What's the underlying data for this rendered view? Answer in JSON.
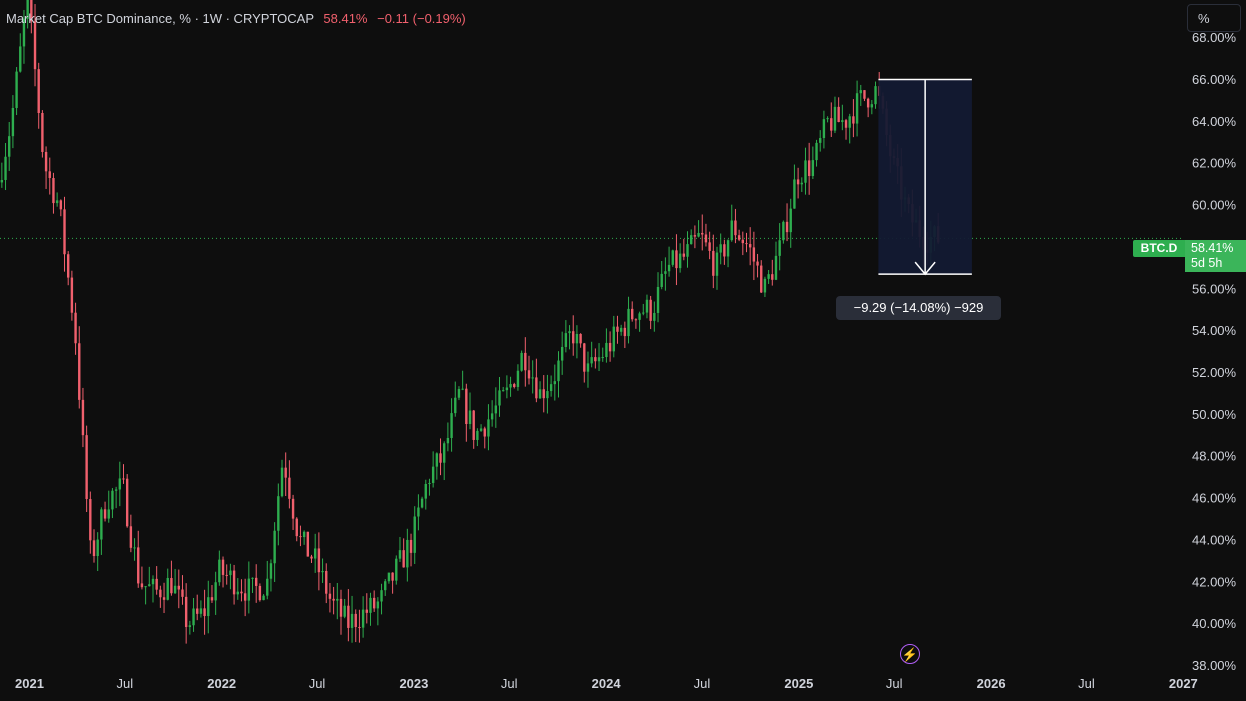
{
  "header": {
    "title": "Market Cap BTC Dominance, % · 1W · CRYPTOCAP",
    "price": "58.41%",
    "change": "−0.11 (−0.19%)"
  },
  "unit_button": "%",
  "symbol_tag": "BTC.D",
  "price_tag": {
    "price": "58.41%",
    "countdown": "5d 5h"
  },
  "measure_label": "−9.29 (−14.08%) −929",
  "icons": {
    "alert": "lightning-bolt-icon"
  },
  "colors": {
    "up": "#2eae4f",
    "down": "#f0606d",
    "background": "#0e0e0e",
    "measure_box": "#131a33"
  },
  "chart_data": {
    "type": "candlestick",
    "title": "Market Cap BTC Dominance, %",
    "interval": "1W",
    "y_ticks": [
      "38.00%",
      "40.00%",
      "42.00%",
      "44.00%",
      "46.00%",
      "48.00%",
      "50.00%",
      "52.00%",
      "54.00%",
      "56.00%",
      "58.00%",
      "60.00%",
      "62.00%",
      "64.00%",
      "66.00%",
      "68.00%"
    ],
    "ylim": [
      37.5,
      69.8
    ],
    "x_ticks": [
      "2021",
      "Jul",
      "2022",
      "Jul",
      "2023",
      "Jul",
      "2024",
      "Jul",
      "2025",
      "Jul",
      "2026",
      "Jul",
      "2027"
    ],
    "x_tick_dates": [
      "2021-01",
      "2021-07",
      "2022-01",
      "2022-07",
      "2023-01",
      "2023-07",
      "2024-01",
      "2024-07",
      "2025-01",
      "2025-07",
      "2026-01",
      "2026-07",
      "2027-01"
    ],
    "xlim": [
      "2020-11-06",
      "2027-04-30"
    ],
    "last_value": 58.41,
    "close_series": {
      "dates": [
        "2020-11",
        "2020-12",
        "2021-01",
        "2021-02",
        "2021-03",
        "2021-04",
        "2021-05",
        "2021-06",
        "2021-07",
        "2021-08",
        "2021-09",
        "2021-10",
        "2021-11",
        "2021-12",
        "2022-01",
        "2022-02",
        "2022-03",
        "2022-04",
        "2022-05",
        "2022-06",
        "2022-07",
        "2022-08",
        "2022-09",
        "2022-10",
        "2022-11",
        "2022-12",
        "2023-01",
        "2023-02",
        "2023-03",
        "2023-04",
        "2023-05",
        "2023-06",
        "2023-07",
        "2023-08",
        "2023-09",
        "2023-10",
        "2023-11",
        "2023-12",
        "2024-01",
        "2024-02",
        "2024-03",
        "2024-04",
        "2024-05",
        "2024-06",
        "2024-07",
        "2024-08",
        "2024-09",
        "2024-10",
        "2024-11",
        "2024-12",
        "2025-01",
        "2025-02",
        "2025-03",
        "2025-04",
        "2025-05",
        "2025-06",
        "2025-07",
        "2025-08",
        "2025-09"
      ],
      "values": [
        60.5,
        64.0,
        70.0,
        62.0,
        60.0,
        54.0,
        43.0,
        46.0,
        46.5,
        42.0,
        41.5,
        42.0,
        40.0,
        40.5,
        42.5,
        42.0,
        41.5,
        42.0,
        48.0,
        44.0,
        43.0,
        41.0,
        40.0,
        40.5,
        41.0,
        42.5,
        44.0,
        47.0,
        48.0,
        51.0,
        49.0,
        50.0,
        51.0,
        53.0,
        51.0,
        52.0,
        54.0,
        52.0,
        53.0,
        54.0,
        55.0,
        55.0,
        57.0,
        57.5,
        58.5,
        57.0,
        59.0,
        58.0,
        56.0,
        58.0,
        61.5,
        62.0,
        64.0,
        64.0,
        65.0,
        65.5,
        62.0,
        59.5,
        58.41
      ]
    },
    "measurement": {
      "start_date": "2025-06",
      "end_date": "2025-09",
      "top": 66.0,
      "bottom": 56.7,
      "change": "−9.29",
      "percent": "−14.08%",
      "bars": "−929"
    }
  }
}
